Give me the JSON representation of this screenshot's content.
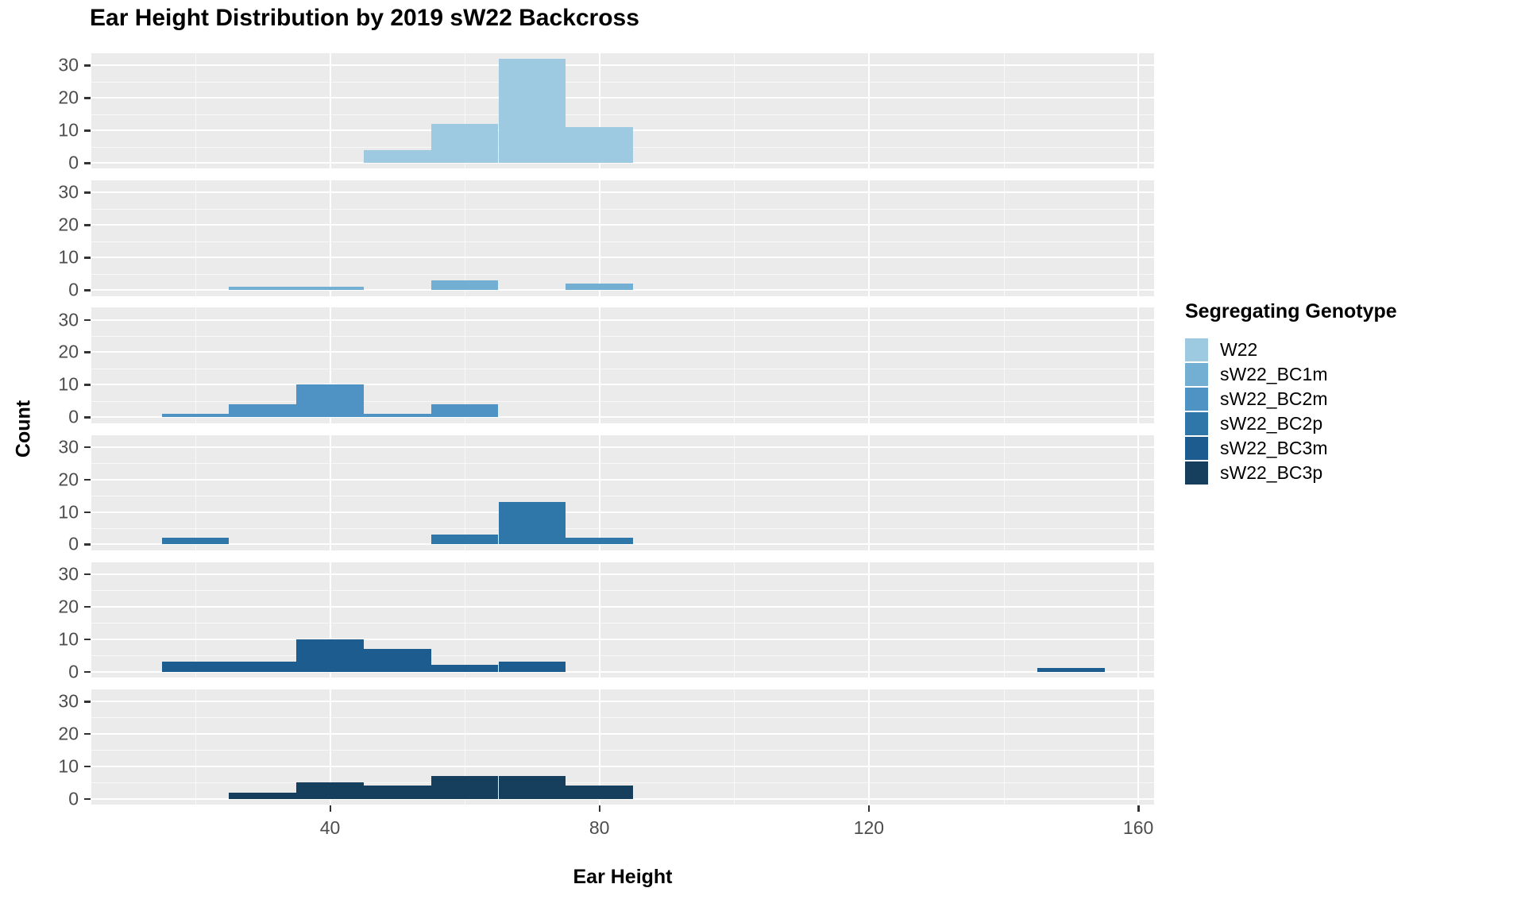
{
  "title": "Ear Height Distribution by 2019 sW22 Backcross",
  "axes": {
    "x_label": "Ear Height",
    "y_label": "Count"
  },
  "legend": {
    "title": "Segregating Genotype",
    "items": [
      {
        "label": "W22",
        "color": "#9ECAE1"
      },
      {
        "label": "sW22_BC1m",
        "color": "#72AFD2"
      },
      {
        "label": "sW22_BC2m",
        "color": "#4E93C3"
      },
      {
        "label": "sW22_BC2p",
        "color": "#2E77A8"
      },
      {
        "label": "sW22_BC3m",
        "color": "#1C5C8E"
      },
      {
        "label": "sW22_BC3p",
        "color": "#163F5E"
      }
    ]
  },
  "chart_data": {
    "type": "bar",
    "subtype": "faceted-histogram",
    "title": "Ear Height Distribution by 2019 sW22 Backcross",
    "xlabel": "Ear Height",
    "ylabel": "Count",
    "legend_title": "Segregating Genotype",
    "facet_order_note": "six vertically stacked facets, one per genotype, shared x and y scales, no strip labels",
    "bin_width": 10,
    "x_ticks": [
      40,
      80,
      120,
      160
    ],
    "x_minor_ticks": [
      20,
      60,
      100,
      140
    ],
    "y_ticks": [
      0,
      10,
      20,
      30
    ],
    "y_minor_ticks": [
      5,
      15,
      25
    ],
    "xlim": [
      4.6,
      162.3
    ],
    "ylim_per_facet": [
      -1.8,
      33.7
    ],
    "grid": "white major and minor gridlines on gray panel",
    "legend_position": "right",
    "series": [
      {
        "name": "W22",
        "color": "#9ECAE1",
        "bins": [
          {
            "x0": 45,
            "x1": 55,
            "count": 4
          },
          {
            "x0": 55,
            "x1": 65,
            "count": 12
          },
          {
            "x0": 65,
            "x1": 75,
            "count": 32
          },
          {
            "x0": 75,
            "x1": 85,
            "count": 11
          }
        ]
      },
      {
        "name": "sW22_BC1m",
        "color": "#72AFD2",
        "bins": [
          {
            "x0": 25,
            "x1": 35,
            "count": 1
          },
          {
            "x0": 35,
            "x1": 45,
            "count": 1
          },
          {
            "x0": 55,
            "x1": 65,
            "count": 3
          },
          {
            "x0": 75,
            "x1": 85,
            "count": 2
          }
        ]
      },
      {
        "name": "sW22_BC2m",
        "color": "#4E93C3",
        "bins": [
          {
            "x0": 15,
            "x1": 25,
            "count": 1
          },
          {
            "x0": 25,
            "x1": 35,
            "count": 4
          },
          {
            "x0": 35,
            "x1": 45,
            "count": 10
          },
          {
            "x0": 45,
            "x1": 55,
            "count": 1
          },
          {
            "x0": 55,
            "x1": 65,
            "count": 4
          }
        ]
      },
      {
        "name": "sW22_BC2p",
        "color": "#2E77A8",
        "bins": [
          {
            "x0": 15,
            "x1": 25,
            "count": 2
          },
          {
            "x0": 55,
            "x1": 65,
            "count": 3
          },
          {
            "x0": 65,
            "x1": 75,
            "count": 13
          },
          {
            "x0": 75,
            "x1": 85,
            "count": 2
          }
        ]
      },
      {
        "name": "sW22_BC3m",
        "color": "#1C5C8E",
        "bins": [
          {
            "x0": 15,
            "x1": 25,
            "count": 3
          },
          {
            "x0": 25,
            "x1": 35,
            "count": 3
          },
          {
            "x0": 35,
            "x1": 45,
            "count": 10
          },
          {
            "x0": 45,
            "x1": 55,
            "count": 7
          },
          {
            "x0": 55,
            "x1": 65,
            "count": 2
          },
          {
            "x0": 65,
            "x1": 75,
            "count": 3
          },
          {
            "x0": 145,
            "x1": 155,
            "count": 1
          }
        ]
      },
      {
        "name": "sW22_BC3p",
        "color": "#163F5E",
        "bins": [
          {
            "x0": 25,
            "x1": 35,
            "count": 2
          },
          {
            "x0": 35,
            "x1": 45,
            "count": 5
          },
          {
            "x0": 45,
            "x1": 55,
            "count": 4
          },
          {
            "x0": 55,
            "x1": 65,
            "count": 7
          },
          {
            "x0": 65,
            "x1": 75,
            "count": 7
          },
          {
            "x0": 75,
            "x1": 85,
            "count": 4
          }
        ]
      }
    ]
  }
}
